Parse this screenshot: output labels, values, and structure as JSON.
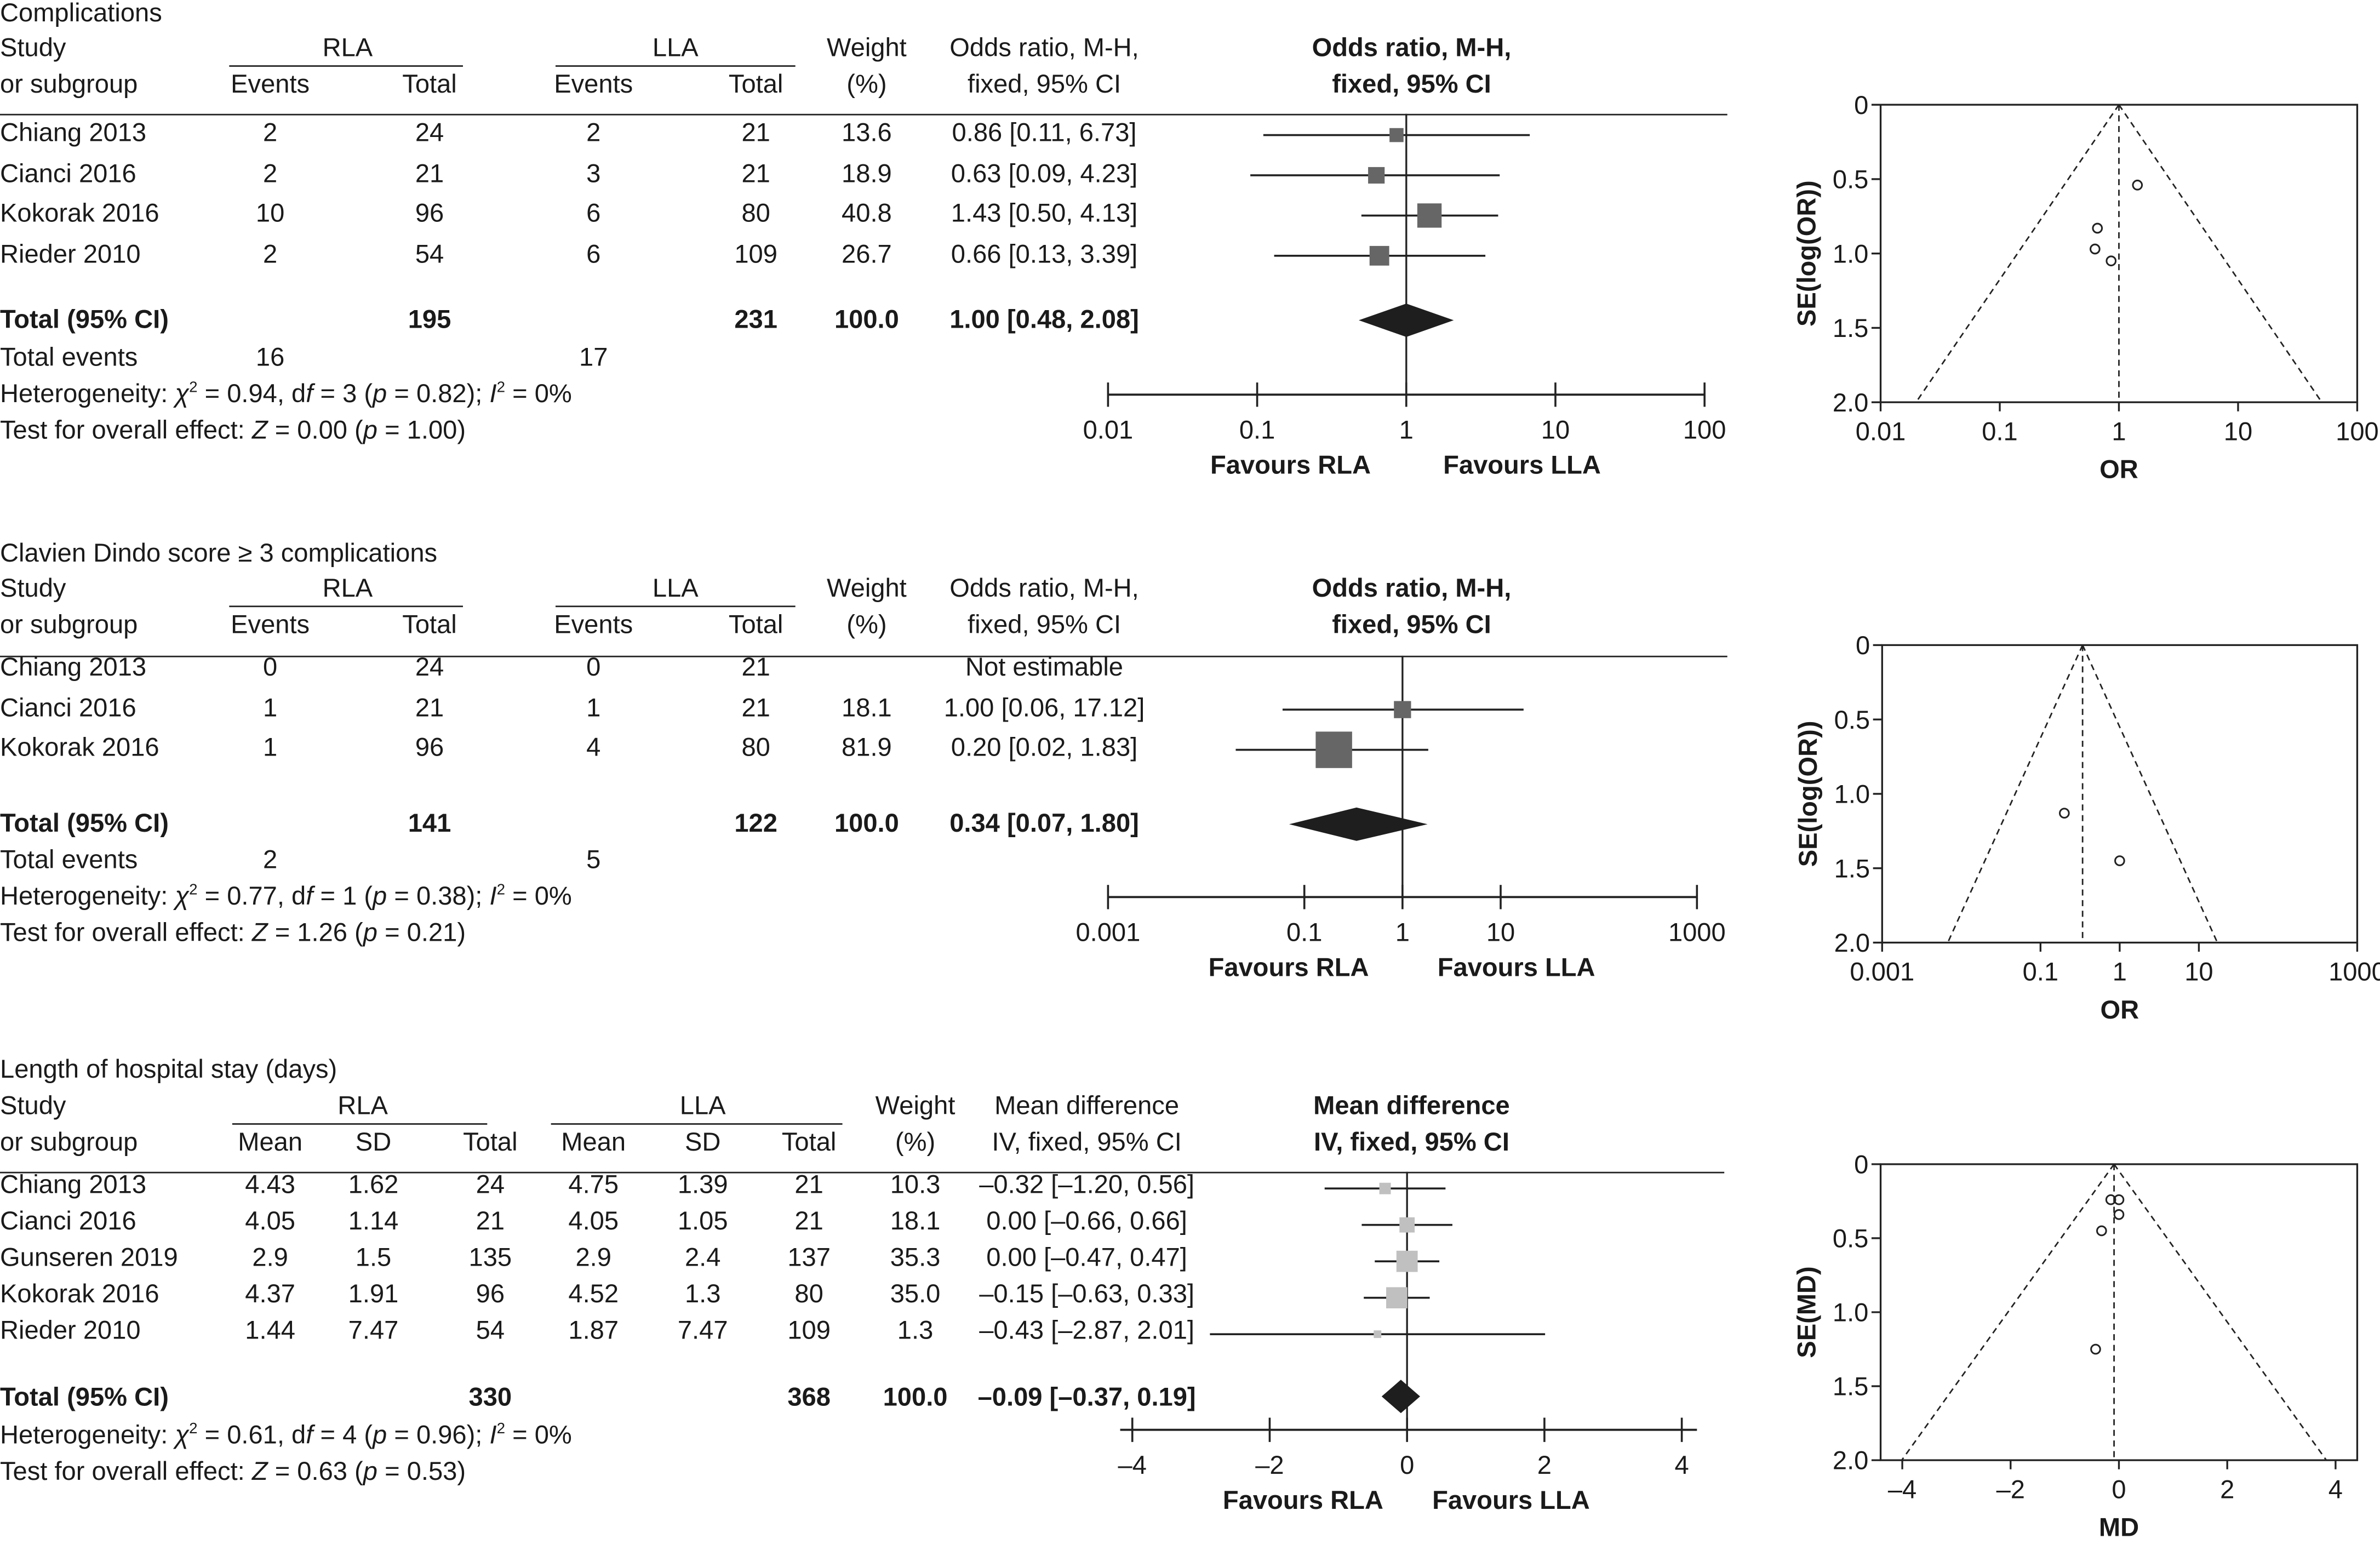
{
  "chart_data": [
    {
      "type": "forest",
      "title": "Complications",
      "measure": "Odds ratio, M-H, fixed, 95% CI",
      "header": {
        "study": [
          "Study",
          "or subgroup"
        ],
        "group1": "RLA",
        "group2": "LLA",
        "cols1": [
          "Events",
          "Total"
        ],
        "cols2": [
          "Events",
          "Total"
        ],
        "weight": [
          "Weight",
          "(%)"
        ],
        "effect": [
          "Odds ratio, M-H,",
          "fixed, 95% CI"
        ],
        "plot_header": [
          "Odds ratio, M-H,",
          "fixed, 95% CI"
        ]
      },
      "rows": [
        {
          "study": "Chiang 2013",
          "g1": [
            "2",
            "24"
          ],
          "g2": [
            "2",
            "21"
          ],
          "weight": "13.6",
          "ci_text": "0.86 [0.11, 6.73]",
          "est": 0.86,
          "lo": 0.11,
          "hi": 6.73,
          "w": 13.6
        },
        {
          "study": "Cianci 2016",
          "g1": [
            "2",
            "21"
          ],
          "g2": [
            "3",
            "21"
          ],
          "weight": "18.9",
          "ci_text": "0.63 [0.09, 4.23]",
          "est": 0.63,
          "lo": 0.09,
          "hi": 4.23,
          "w": 18.9
        },
        {
          "study": "Kokorak 2016",
          "g1": [
            "10",
            "96"
          ],
          "g2": [
            "6",
            "80"
          ],
          "weight": "40.8",
          "ci_text": "1.43 [0.50, 4.13]",
          "est": 1.43,
          "lo": 0.5,
          "hi": 4.13,
          "w": 40.8
        },
        {
          "study": "Rieder 2010",
          "g1": [
            "2",
            "54"
          ],
          "g2": [
            "6",
            "109"
          ],
          "weight": "26.7",
          "ci_text": "0.66 [0.13, 3.39]",
          "est": 0.66,
          "lo": 0.13,
          "hi": 3.39,
          "w": 26.7
        }
      ],
      "total": {
        "label": "Total (95% CI)",
        "g1_total": "195",
        "g2_total": "231",
        "weight": "100.0",
        "ci_text": "1.00 [0.48, 2.08]",
        "est": 1.0,
        "lo": 0.48,
        "hi": 2.08
      },
      "total_events": {
        "label": "Total events",
        "g1": "16",
        "g2": "17"
      },
      "heterogeneity": {
        "prefix": "Heterogeneity: ",
        "chi": "χ",
        "chi_val": " = 0.94, d",
        "df_italic": "f",
        "df_val": " = 3 (",
        "p": "p",
        "p_val": " = 0.82); ",
        "i": "I",
        "i_val": " = 0%"
      },
      "overall": {
        "prefix": "Test for overall effect: ",
        "z": "Z",
        "z_val": " = 0.00 (",
        "p": "p",
        "p_val": " = 1.00)"
      },
      "axis": {
        "scale": "log",
        "ticks": [
          0.01,
          0.1,
          1,
          10,
          100
        ],
        "tick_labels": [
          "0.01",
          "0.1",
          "1",
          "10",
          "100"
        ],
        "range": [
          0.01,
          100
        ],
        "left_label": "Favours RLA",
        "right_label": "Favours LLA"
      },
      "marker_color": "#666666"
    },
    {
      "type": "funnel",
      "xlabel": "OR",
      "ylabel": "SE(log(OR))",
      "x_scale": "log",
      "xlim": [
        0.01,
        100
      ],
      "ylim": [
        0,
        2.0
      ],
      "x_ticks": [
        0.01,
        0.1,
        1,
        10,
        100
      ],
      "x_tick_labels": [
        "0.01",
        "0.1",
        "1",
        "10",
        "100"
      ],
      "y_ticks": [
        0,
        0.5,
        1.0,
        1.5,
        2.0
      ],
      "y_tick_labels": [
        "0",
        "0.5",
        "1.0",
        "1.5",
        "2.0"
      ],
      "center": 1.0,
      "points": [
        {
          "x": 1.43,
          "y": 0.54
        },
        {
          "x": 0.66,
          "y": 0.83
        },
        {
          "x": 0.63,
          "y": 0.97
        },
        {
          "x": 0.86,
          "y": 1.05
        }
      ]
    },
    {
      "type": "forest",
      "title": "Clavien Dindo score ≥ 3 complications",
      "measure": "Odds ratio, M-H, fixed, 95% CI",
      "header": {
        "study": [
          "Study",
          "or subgroup"
        ],
        "group1": "RLA",
        "group2": "LLA",
        "cols1": [
          "Events",
          "Total"
        ],
        "cols2": [
          "Events",
          "Total"
        ],
        "weight": [
          "Weight",
          "(%)"
        ],
        "effect": [
          "Odds ratio, M-H,",
          "fixed, 95% CI"
        ],
        "plot_header": [
          "Odds ratio, M-H,",
          "fixed, 95% CI"
        ]
      },
      "rows": [
        {
          "study": "Chiang 2013",
          "g1": [
            "0",
            "24"
          ],
          "g2": [
            "0",
            "21"
          ],
          "weight": "",
          "ci_text": "Not estimable",
          "est": null,
          "lo": null,
          "hi": null,
          "w": 0
        },
        {
          "study": "Cianci 2016",
          "g1": [
            "1",
            "21"
          ],
          "g2": [
            "1",
            "21"
          ],
          "weight": "18.1",
          "ci_text": "1.00 [0.06, 17.12]",
          "est": 1.0,
          "lo": 0.06,
          "hi": 17.12,
          "w": 18.1
        },
        {
          "study": "Kokorak 2016",
          "g1": [
            "1",
            "96"
          ],
          "g2": [
            "4",
            "80"
          ],
          "weight": "81.9",
          "ci_text": "0.20 [0.02, 1.83]",
          "est": 0.2,
          "lo": 0.02,
          "hi": 1.83,
          "w": 81.9
        }
      ],
      "total": {
        "label": "Total (95% CI)",
        "g1_total": "141",
        "g2_total": "122",
        "weight": "100.0",
        "ci_text": "0.34 [0.07, 1.80]",
        "est": 0.34,
        "lo": 0.07,
        "hi": 1.8
      },
      "total_events": {
        "label": "Total events",
        "g1": "2",
        "g2": "5"
      },
      "heterogeneity": {
        "prefix": "Heterogeneity: ",
        "chi": "χ",
        "chi_val": " = 0.77, d",
        "df_italic": "f",
        "df_val": " = 1 (",
        "p": "p",
        "p_val": " = 0.38); ",
        "i": "I",
        "i_val": " = 0%"
      },
      "overall": {
        "prefix": "Test for overall effect: ",
        "z": "Z",
        "z_val": " = 1.26 (",
        "p": "p",
        "p_val": " = 0.21)"
      },
      "axis": {
        "scale": "log",
        "ticks": [
          0.001,
          0.1,
          1,
          10,
          1000
        ],
        "tick_labels": [
          "0.001",
          "0.1",
          "1",
          "10",
          "1000"
        ],
        "range": [
          0.001,
          1000
        ],
        "left_label": "Favours RLA",
        "right_label": "Favours LLA"
      },
      "marker_color": "#666666"
    },
    {
      "type": "funnel",
      "xlabel": "OR",
      "ylabel": "SE(log(OR))",
      "x_scale": "log",
      "xlim": [
        0.001,
        1000
      ],
      "ylim": [
        0,
        2.0
      ],
      "x_ticks": [
        0.001,
        0.1,
        1,
        10,
        1000
      ],
      "x_tick_labels": [
        "0.001",
        "0.1",
        "1",
        "10",
        "1000"
      ],
      "y_ticks": [
        0,
        0.5,
        1.0,
        1.5,
        2.0
      ],
      "y_tick_labels": [
        "0",
        "0.5",
        "1.0",
        "1.5",
        "2.0"
      ],
      "center": 0.34,
      "points": [
        {
          "x": 0.2,
          "y": 1.13
        },
        {
          "x": 1.0,
          "y": 1.45
        }
      ]
    },
    {
      "type": "forest",
      "title": "Length of hospital stay (days)",
      "measure": "Mean difference IV, fixed, 95% CI",
      "header": {
        "study": [
          "Study",
          "or subgroup"
        ],
        "group1": "RLA",
        "group2": "LLA",
        "cols1": [
          "Mean",
          "SD",
          "Total"
        ],
        "cols2": [
          "Mean",
          "SD",
          "Total"
        ],
        "weight": [
          "Weight",
          "(%)"
        ],
        "effect": [
          "Mean difference",
          "IV, fixed, 95% CI"
        ],
        "plot_header": [
          "Mean difference",
          "IV, fixed, 95% CI"
        ]
      },
      "rows": [
        {
          "study": "Chiang 2013",
          "g1": [
            "4.43",
            "1.62",
            "24"
          ],
          "g2": [
            "4.75",
            "1.39",
            "21"
          ],
          "weight": "10.3",
          "ci_text": "–0.32 [–1.20, 0.56]",
          "est": -0.32,
          "lo": -1.2,
          "hi": 0.56,
          "w": 10.3
        },
        {
          "study": "Cianci 2016",
          "g1": [
            "4.05",
            "1.14",
            "21"
          ],
          "g2": [
            "4.05",
            "1.05",
            "21"
          ],
          "weight": "18.1",
          "ci_text": "0.00 [–0.66, 0.66]",
          "est": 0.0,
          "lo": -0.66,
          "hi": 0.66,
          "w": 18.1
        },
        {
          "study": "Gunseren 2019",
          "g1": [
            "2.9",
            "1.5",
            "135"
          ],
          "g2": [
            "2.9",
            "2.4",
            "137"
          ],
          "weight": "35.3",
          "ci_text": "0.00 [–0.47, 0.47]",
          "est": 0.0,
          "lo": -0.47,
          "hi": 0.47,
          "w": 35.3
        },
        {
          "study": "Kokorak 2016",
          "g1": [
            "4.37",
            "1.91",
            "96"
          ],
          "g2": [
            "4.52",
            "1.3",
            "80"
          ],
          "weight": "35.0",
          "ci_text": "–0.15 [–0.63, 0.33]",
          "est": -0.15,
          "lo": -0.63,
          "hi": 0.33,
          "w": 35.0
        },
        {
          "study": "Rieder 2010",
          "g1": [
            "1.44",
            "7.47",
            "54"
          ],
          "g2": [
            "1.87",
            "7.47",
            "109"
          ],
          "weight": "1.3",
          "ci_text": "–0.43 [–2.87, 2.01]",
          "est": -0.43,
          "lo": -2.87,
          "hi": 2.01,
          "w": 1.3
        }
      ],
      "total": {
        "label": "Total (95% CI)",
        "g1_total": "330",
        "g2_total": "368",
        "weight": "100.0",
        "ci_text": "–0.09 [–0.37, 0.19]",
        "est": -0.09,
        "lo": -0.37,
        "hi": 0.19
      },
      "heterogeneity": {
        "prefix": "Heterogeneity: ",
        "chi": "χ",
        "chi_val": " = 0.61, d",
        "df_italic": "f",
        "df_val": " = 4 (",
        "p": "p",
        "p_val": " = 0.96); ",
        "i": "I",
        "i_val": " = 0%"
      },
      "overall": {
        "prefix": "Test for overall effect: ",
        "z": "Z",
        "z_val": " = 0.63 (",
        "p": "p",
        "p_val": " = 0.53)"
      },
      "axis": {
        "scale": "linear",
        "ticks": [
          -4,
          -2,
          0,
          2,
          4
        ],
        "tick_labels": [
          "–4",
          "–2",
          "0",
          "2",
          "4"
        ],
        "range": [
          -4.4,
          4.4
        ],
        "left_label": "Favours RLA",
        "right_label": "Favours LLA"
      },
      "marker_color": "#c0c0c0"
    },
    {
      "type": "funnel",
      "xlabel": "MD",
      "ylabel": "SE(MD)",
      "x_scale": "linear",
      "xlim": [
        -4.4,
        4.4
      ],
      "ylim": [
        0,
        2.0
      ],
      "x_ticks": [
        -4,
        -2,
        0,
        2,
        4
      ],
      "x_tick_labels": [
        "–4",
        "–2",
        "0",
        "2",
        "4"
      ],
      "y_ticks": [
        0,
        0.5,
        1.0,
        1.5,
        2.0
      ],
      "y_tick_labels": [
        "0",
        "0.5",
        "1.0",
        "1.5",
        "2.0"
      ],
      "center": -0.09,
      "points": [
        {
          "x": -0.15,
          "y": 0.24
        },
        {
          "x": 0.0,
          "y": 0.24
        },
        {
          "x": 0.0,
          "y": 0.34
        },
        {
          "x": -0.32,
          "y": 0.45
        },
        {
          "x": -0.43,
          "y": 1.25
        }
      ]
    }
  ]
}
